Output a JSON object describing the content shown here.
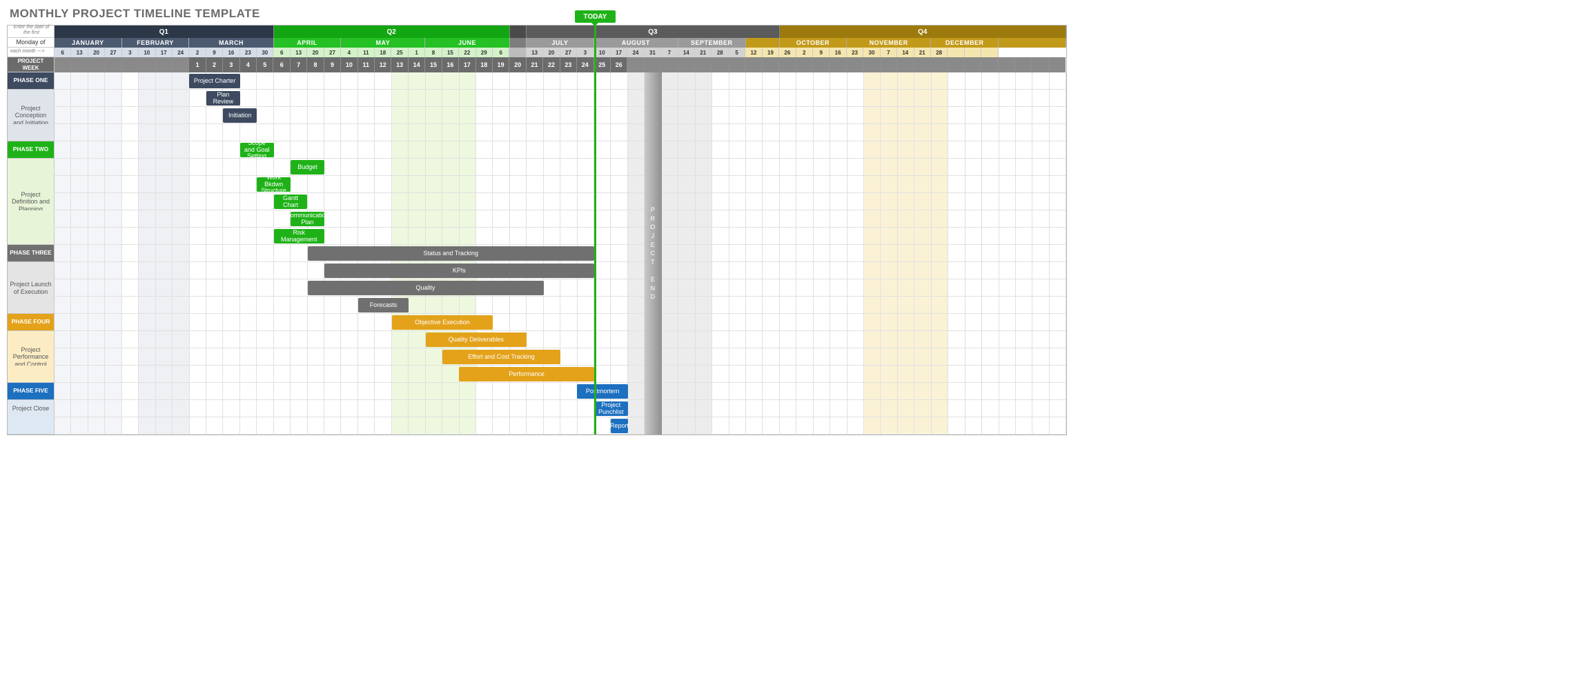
{
  "title": "MONTHLY PROJECT TIMELINE TEMPLATE",
  "side_note_top": "Enter the date of the first",
  "side_note_mid": "Monday of",
  "side_note_bot": "each month --->",
  "project_week_label": "PROJECT WEEK",
  "today_label": "TODAY",
  "today_col": 32,
  "project_end_col": 35,
  "project_end_label": "PROJECT\nEND",
  "total_cols": 60,
  "quarters": [
    {
      "label": "Q1",
      "span": 13,
      "bg": "#2c3747",
      "fg": "#ffffff"
    },
    {
      "label": "Q2",
      "span": 14,
      "bg": "#13a613",
      "fg": "#ffffff"
    },
    {
      "label": "",
      "span": 1,
      "bg": "#4a4a4a",
      "fg": "#ffffff"
    },
    {
      "label": "Q3",
      "span": 15,
      "bg": "#5b5b5b",
      "fg": "#ffffff"
    },
    {
      "label": "Q4",
      "span": 17,
      "bg": "#9c7a0d",
      "fg": "#ffffff"
    }
  ],
  "months": [
    {
      "label": "JANUARY",
      "span": 4,
      "bg": "#4c5a70",
      "fg": "#ffffff"
    },
    {
      "label": "FEBRUARY",
      "span": 4,
      "bg": "#4c5a70",
      "fg": "#ffffff"
    },
    {
      "label": "MARCH",
      "span": 5,
      "bg": "#4c5a70",
      "fg": "#ffffff"
    },
    {
      "label": "APRIL",
      "span": 4,
      "bg": "#24c024",
      "fg": "#ffffff"
    },
    {
      "label": "MAY",
      "span": 5,
      "bg": "#24c024",
      "fg": "#ffffff"
    },
    {
      "label": "JUNE",
      "span": 5,
      "bg": "#24c024",
      "fg": "#ffffff"
    },
    {
      "label": "",
      "span": 1,
      "bg": "#7d7d7d",
      "fg": "#ffffff"
    },
    {
      "label": "JULY",
      "span": 4,
      "bg": "#9a9a9a",
      "fg": "#ffffff"
    },
    {
      "label": "AUGUST",
      "span": 5,
      "bg": "#9a9a9a",
      "fg": "#ffffff"
    },
    {
      "label": "SEPTEMBER",
      "span": 4,
      "bg": "#9a9a9a",
      "fg": "#ffffff"
    },
    {
      "label": "",
      "span": 2,
      "bg": "#c29a1a",
      "fg": "#ffffff"
    },
    {
      "label": "OCTOBER",
      "span": 4,
      "bg": "#c29a1a",
      "fg": "#ffffff"
    },
    {
      "label": "NOVEMBER",
      "span": 5,
      "bg": "#c29a1a",
      "fg": "#ffffff"
    },
    {
      "label": "DECEMBER",
      "span": 4,
      "bg": "#c29a1a",
      "fg": "#ffffff"
    },
    {
      "label": "",
      "span": 4,
      "bg": "#c29a1a",
      "fg": "#ffffff"
    }
  ],
  "date_groups": [
    {
      "vals": [
        "6",
        "13",
        "20",
        "27"
      ],
      "bg": "#d6dde8",
      "fg": "#333"
    },
    {
      "vals": [
        "3",
        "10",
        "17",
        "24"
      ],
      "bg": "#d6dde8",
      "fg": "#333"
    },
    {
      "vals": [
        "2",
        "9",
        "16",
        "23",
        "30"
      ],
      "bg": "#d6dde8",
      "fg": "#333"
    },
    {
      "vals": [
        "6",
        "13",
        "20",
        "27"
      ],
      "bg": "#d3f2c9",
      "fg": "#333"
    },
    {
      "vals": [
        "4",
        "11",
        "18",
        "25",
        "1"
      ],
      "bg": "#d3f2c9",
      "fg": "#333"
    },
    {
      "vals": [
        "8",
        "15",
        "22",
        "29",
        "6"
      ],
      "bg": "#d3f2c9",
      "fg": "#333"
    },
    {
      "vals": [
        ""
      ],
      "bg": "#bcbcbc",
      "fg": "#333"
    },
    {
      "vals": [
        "13",
        "20",
        "27",
        "3"
      ],
      "bg": "#d3d3d3",
      "fg": "#333"
    },
    {
      "vals": [
        "10",
        "17",
        "24",
        "31",
        "7"
      ],
      "bg": "#d3d3d3",
      "fg": "#333"
    },
    {
      "vals": [
        "14",
        "21",
        "28",
        "5"
      ],
      "bg": "#d3d3d3",
      "fg": "#333"
    },
    {
      "vals": [
        "12",
        "19"
      ],
      "bg": "#f5e6af",
      "fg": "#333"
    },
    {
      "vals": [
        "26",
        "2",
        "9",
        "16"
      ],
      "bg": "#f5e6af",
      "fg": "#333"
    },
    {
      "vals": [
        "23",
        "30",
        "7",
        "14",
        "21"
      ],
      "bg": "#f5e6af",
      "fg": "#333"
    },
    {
      "vals": [
        "28",
        "",
        "",
        ""
      ],
      "bg": "#f5e6af",
      "fg": "#333"
    }
  ],
  "weeks": [
    "",
    "",
    "",
    "",
    "",
    "",
    "",
    "",
    "1",
    "2",
    "3",
    "4",
    "5",
    "6",
    "7",
    "8",
    "9",
    "10",
    "11",
    "12",
    "13",
    "14",
    "15",
    "16",
    "17",
    "18",
    "19",
    "20",
    "21",
    "22",
    "23",
    "24",
    "25",
    "26",
    "",
    "",
    "",
    "",
    "",
    "",
    "",
    "",
    "",
    "",
    "",
    "",
    "",
    "",
    "",
    "",
    "",
    "",
    "",
    "",
    "",
    "",
    "",
    "",
    "",
    ""
  ],
  "column_tints": [
    {
      "start": 0,
      "span": 4,
      "color": "#f4f5f8"
    },
    {
      "start": 5,
      "span": 3,
      "color": "#eef0f4"
    },
    {
      "start": 20,
      "span": 5,
      "color": "#eef8df"
    },
    {
      "start": 34,
      "span": 5,
      "color": "#ececec"
    },
    {
      "start": 48,
      "span": 5,
      "color": "#fbf2d6"
    }
  ],
  "phases": [
    {
      "header": {
        "label": "PHASE ONE",
        "bg": "#3d4a60"
      },
      "desc": {
        "label": "Project Conception and Initiation",
        "bg": "#dfe3ea",
        "span": 3
      },
      "bar_color": "#3d4a60",
      "bars": [
        {
          "label": "Project Charter",
          "start": 8,
          "span": 3
        },
        {
          "label": "Plan Review",
          "start": 9,
          "span": 2
        },
        {
          "label": "Initiation",
          "start": 10,
          "span": 2
        }
      ]
    },
    {
      "header": {
        "label": "PHASE TWO",
        "bg": "#1fb218"
      },
      "desc": {
        "label": "Project Definition and Planning",
        "bg": "#e8f4d8",
        "span": 5
      },
      "bar_color": "#1fb218",
      "bars": [
        {
          "label": "Scope and Goal Setting",
          "start": 11,
          "span": 2
        },
        {
          "label": "Budget",
          "start": 14,
          "span": 2
        },
        {
          "label": "Work Bkdwn Structure",
          "start": 12,
          "span": 2
        },
        {
          "label": "Gantt Chart",
          "start": 13,
          "span": 2
        },
        {
          "label": "Communication Plan",
          "start": 14,
          "span": 2
        },
        {
          "label": "Risk Management",
          "start": 13,
          "span": 3
        }
      ]
    },
    {
      "header": {
        "label": "PHASE THREE",
        "bg": "#707070"
      },
      "desc": {
        "label": "Project Launch of Execution",
        "bg": "#e4e4e4",
        "span": 3
      },
      "bar_color": "#707070",
      "bars": [
        {
          "label": "Status  and Tracking",
          "start": 15,
          "span": 17
        },
        {
          "label": "KPIs",
          "start": 16,
          "span": 16
        },
        {
          "label": "Quality",
          "start": 15,
          "span": 14
        },
        {
          "label": "Forecasts",
          "start": 18,
          "span": 3
        }
      ]
    },
    {
      "header": {
        "label": "PHASE FOUR",
        "bg": "#e3a21a"
      },
      "desc": {
        "label": "Project Performance and Control",
        "bg": "#fbecc4",
        "span": 3
      },
      "bar_color": "#e3a21a",
      "bars": [
        {
          "label": "Objective Execution",
          "start": 20,
          "span": 6
        },
        {
          "label": "Quality Deliverables",
          "start": 22,
          "span": 6
        },
        {
          "label": "Effort and Cost Tracking",
          "start": 23,
          "span": 7
        },
        {
          "label": "Performance",
          "start": 24,
          "span": 8
        }
      ]
    },
    {
      "header": {
        "label": "PHASE FIVE",
        "bg": "#1d6fbf"
      },
      "desc": {
        "label": "Project Close",
        "bg": "#dde8f3",
        "span": 2
      },
      "bar_color": "#1d6fbf",
      "bars": [
        {
          "label": "Postmortem",
          "start": 31,
          "span": 3
        },
        {
          "label": "Project Punchlist",
          "start": 32,
          "span": 2
        },
        {
          "label": "Report",
          "start": 33,
          "span": 1
        }
      ]
    }
  ]
}
